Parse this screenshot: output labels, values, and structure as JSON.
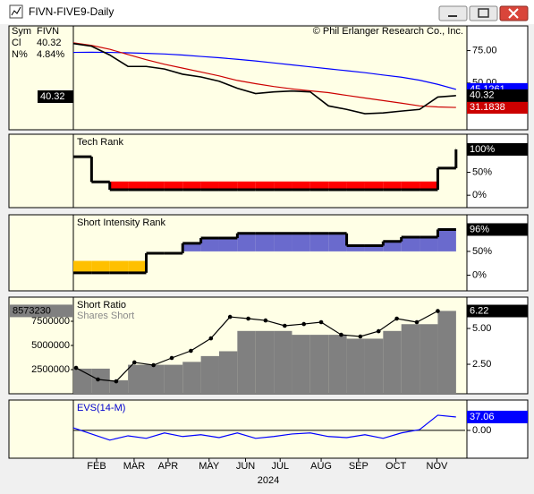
{
  "window": {
    "title": "FIVN-FIVE9-Daily"
  },
  "chart_data": {
    "type": "multi-panel",
    "x": [
      4,
      6,
      8,
      10,
      12,
      14,
      16,
      18,
      20,
      22,
      24,
      26,
      28,
      30,
      32,
      34,
      36,
      38,
      40,
      42,
      44,
      46
    ],
    "xlim": [
      4,
      47
    ],
    "xticks": [
      {
        "value": 6.55,
        "label": "FEB"
      },
      {
        "value": 10.67,
        "label": "MAR"
      },
      {
        "value": 14.4,
        "label": "APR"
      },
      {
        "value": 18.9,
        "label": "MAY"
      },
      {
        "value": 22.9,
        "label": "JUN"
      },
      {
        "value": 26.7,
        "label": "JUL"
      },
      {
        "value": 31.2,
        "label": "AUG"
      },
      {
        "value": 35.3,
        "label": "SEP"
      },
      {
        "value": 39.4,
        "label": "OCT"
      },
      {
        "value": 43.9,
        "label": "NOV"
      }
    ],
    "xlabel": "2024",
    "panels": [
      {
        "type": "line",
        "header": [
          [
            "Sym",
            "FIVN"
          ],
          [
            "Cl",
            "40.32"
          ],
          [
            "N%",
            "4.84%"
          ]
        ],
        "annotation": "© Phil Erlanger Research Co., Inc.",
        "ylim": [
          14,
          94
        ],
        "yticks": [
          {
            "value": 75,
            "label": "75.00"
          },
          {
            "value": 50,
            "label": "50.00"
          }
        ],
        "series": [
          {
            "color": "#0000ff",
            "values": [
              73.6,
              73.8,
              73.6,
              73.3,
              72.9,
              72.4,
              71.6,
              70.5,
              69.5,
              68.3,
              67,
              65.5,
              64,
              62.5,
              61,
              59.5,
              58,
              56.2,
              54.5,
              52.2,
              49,
              45.1261
            ]
          },
          {
            "color": "#cc0000",
            "values": [
              81,
              79,
              76,
              72,
              68,
              64.5,
              61.5,
              58.5,
              55.5,
              52,
              49.5,
              47.3,
              45.5,
              44,
              42.6,
              40.5,
              38.5,
              36.5,
              34.5,
              32.4,
              31.6,
              31.1838
            ]
          },
          {
            "name": "FIVN",
            "color": "#000000",
            "values": [
              80.4,
              78.4,
              71.6,
              62.8,
              62.8,
              60.8,
              56.8,
              54.7,
              51.4,
              46,
              41.9,
              43.2,
              43.9,
              43.2,
              32.4,
              29.7,
              26.4,
              27,
              28.4,
              29.7,
              39.2,
              40.32
            ]
          }
        ]
      },
      {
        "type": "step",
        "title": "Tech Rank",
        "ylim": [
          -27,
          133
        ],
        "yticks": [
          {
            "value": 50,
            "label": "50%"
          },
          {
            "value": 0,
            "label": "0%"
          }
        ],
        "series": [
          {
            "color": "#000000",
            "values": [
              84,
              29,
              12,
              12,
              12,
              12,
              12,
              12,
              12,
              12,
              12,
              12,
              12,
              12,
              12,
              12,
              12,
              12,
              12,
              12,
              59,
              100
            ],
            "last_value_label": "100%",
            "fills": [
              {
                "color": "#ff0000",
                "baseline": 30,
                "side": "below"
              }
            ]
          }
        ]
      },
      {
        "type": "step",
        "title": "Short Intensity Rank",
        "ylim": [
          -33,
          127
        ],
        "yticks": [
          {
            "value": 50,
            "label": "50%"
          },
          {
            "value": 0,
            "label": "0%"
          }
        ],
        "series": [
          {
            "color": "#000000",
            "values": [
              5,
              5,
              5,
              5,
              46,
              46,
              67,
              78,
              78,
              88,
              88,
              88,
              88,
              88,
              88,
              62,
              62,
              71,
              80,
              80,
              96,
              96
            ],
            "last_value_label": "96%",
            "fills": [
              {
                "color": "#6a6acd",
                "baseline": 50,
                "side": "above"
              },
              {
                "color": "#ffc000",
                "baseline": 30,
                "side": "below"
              }
            ]
          }
        ]
      },
      {
        "type": "combo",
        "title": "Short Ratio",
        "ylim": [
          0,
          10000000
        ],
        "yticks": [
          2500000,
          5000000,
          7500000
        ],
        "y2lim": [
          0.44,
          7.19
        ],
        "y2ticks": [
          {
            "value": 2.5,
            "label": "2.50"
          },
          {
            "value": 5,
            "label": "5.00"
          }
        ],
        "series": [
          {
            "name": "Shares Short",
            "type": "step-area",
            "color": "#808080",
            "values": [
              2600000,
              2600000,
              1400000,
              3000000,
              3000000,
              3000000,
              3300000,
              3900000,
              4400000,
              6500000,
              6500000,
              6500000,
              6100000,
              6100000,
              6100000,
              5700000,
              5700000,
              6500000,
              7200000,
              7200000,
              8573230,
              8573230
            ]
          },
          {
            "type": "line",
            "axis": "y2",
            "color": "#000000",
            "markers": true,
            "x": [
              4.3,
              6.7,
              8.7,
              10.7,
              12.8,
              14.8,
              16.9,
              19.1,
              21.2,
              23.2,
              25.1,
              27.2,
              29.3,
              31.2,
              33.4,
              35.5,
              37.5,
              39.5,
              41.7,
              44.0
            ],
            "values": [
              2.25,
              1.44,
              1.31,
              2.63,
              2.44,
              2.94,
              3.44,
              4.31,
              5.81,
              5.69,
              5.56,
              5.19,
              5.31,
              5.44,
              4.56,
              4.44,
              4.81,
              5.69,
              5.44,
              6.22
            ]
          }
        ]
      },
      {
        "type": "line",
        "title": "EVS(14-M)",
        "ylim": [
          -77,
          84
        ],
        "yticks": [
          {
            "value": 0,
            "label": "0.00"
          }
        ],
        "zero_line": true,
        "series": [
          {
            "color": "#0000ff",
            "values": [
              7,
              -10,
              -27,
              -15,
              -22,
              -7,
              -17,
              -12,
              -20,
              -7,
              -22,
              -17,
              -10,
              -7,
              -17,
              -20,
              -12,
              -22,
              -7,
              2,
              42,
              37.06
            ]
          }
        ]
      }
    ]
  }
}
